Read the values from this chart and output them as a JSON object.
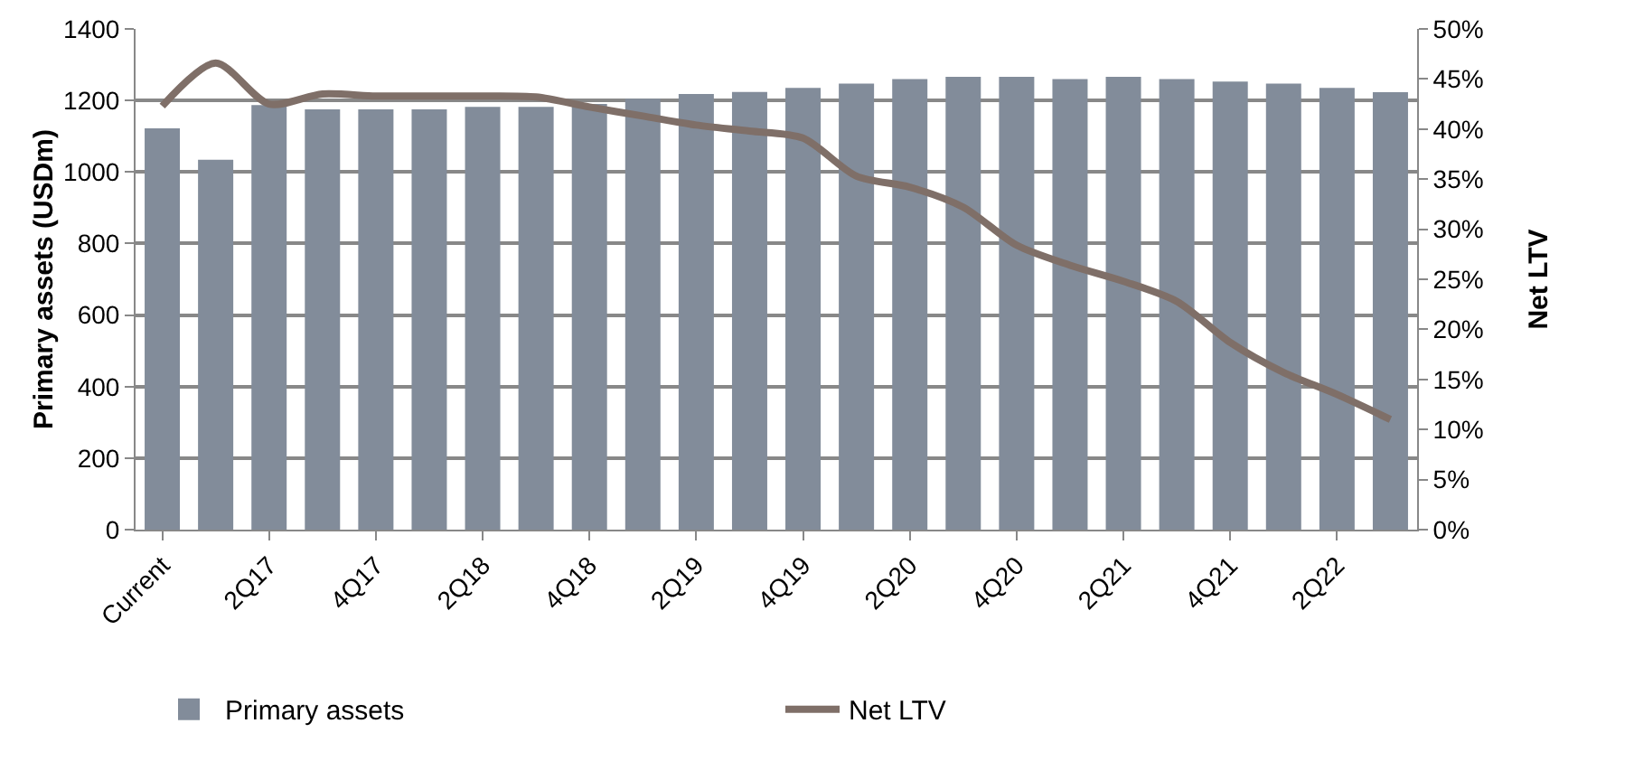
{
  "chart_data": {
    "type": "bar",
    "ylabel": "Primary assets (USDm)",
    "y2label": "Net LTV",
    "categories": [
      "Current",
      null,
      "2Q17",
      null,
      "4Q17",
      null,
      "2Q18",
      null,
      "4Q18",
      null,
      "2Q19",
      null,
      "4Q19",
      null,
      "2Q20",
      null,
      "4Q20",
      null,
      "2Q21",
      null,
      "4Q21",
      null,
      "2Q22",
      null
    ],
    "series": [
      {
        "name": "Primary assets",
        "color": "#828c9a",
        "values": [
          1122,
          1034,
          1187,
          1175,
          1175,
          1175,
          1182,
          1182,
          1190,
          1205,
          1218,
          1224,
          1235,
          1247,
          1260,
          1266,
          1266,
          1260,
          1266,
          1260,
          1253,
          1247,
          1235,
          1223
        ]
      },
      {
        "name": "Net LTV",
        "type": "line",
        "axis": "y2",
        "color": "#7f6f68",
        "values": [
          42.3,
          46.6,
          42.5,
          43.5,
          43.3,
          43.3,
          43.3,
          43.2,
          42.2,
          41.3,
          40.4,
          39.8,
          39.1,
          35.3,
          34.2,
          32.2,
          28.4,
          26.4,
          24.8,
          22.8,
          18.7,
          15.7,
          13.5,
          11.0
        ]
      }
    ],
    "ylim": [
      0,
      1400
    ],
    "yticks": [
      0,
      200,
      400,
      600,
      800,
      1000,
      1200,
      1400
    ],
    "y2lim": [
      0,
      50
    ],
    "y2ticks": [
      {
        "value": 0,
        "label": "0%"
      },
      {
        "value": 5,
        "label": "5%"
      },
      {
        "value": 10,
        "label": "10%"
      },
      {
        "value": 15,
        "label": "15%"
      },
      {
        "value": 20,
        "label": "20%"
      },
      {
        "value": 25,
        "label": "25%"
      },
      {
        "value": 30,
        "label": "30%"
      },
      {
        "value": 35,
        "label": "35%"
      },
      {
        "value": 40,
        "label": "40%"
      },
      {
        "value": 45,
        "label": "45%"
      },
      {
        "value": 50,
        "label": "50%"
      }
    ],
    "grid": "y",
    "legend": "bottom",
    "marker": "none",
    "line_style": "solid"
  }
}
